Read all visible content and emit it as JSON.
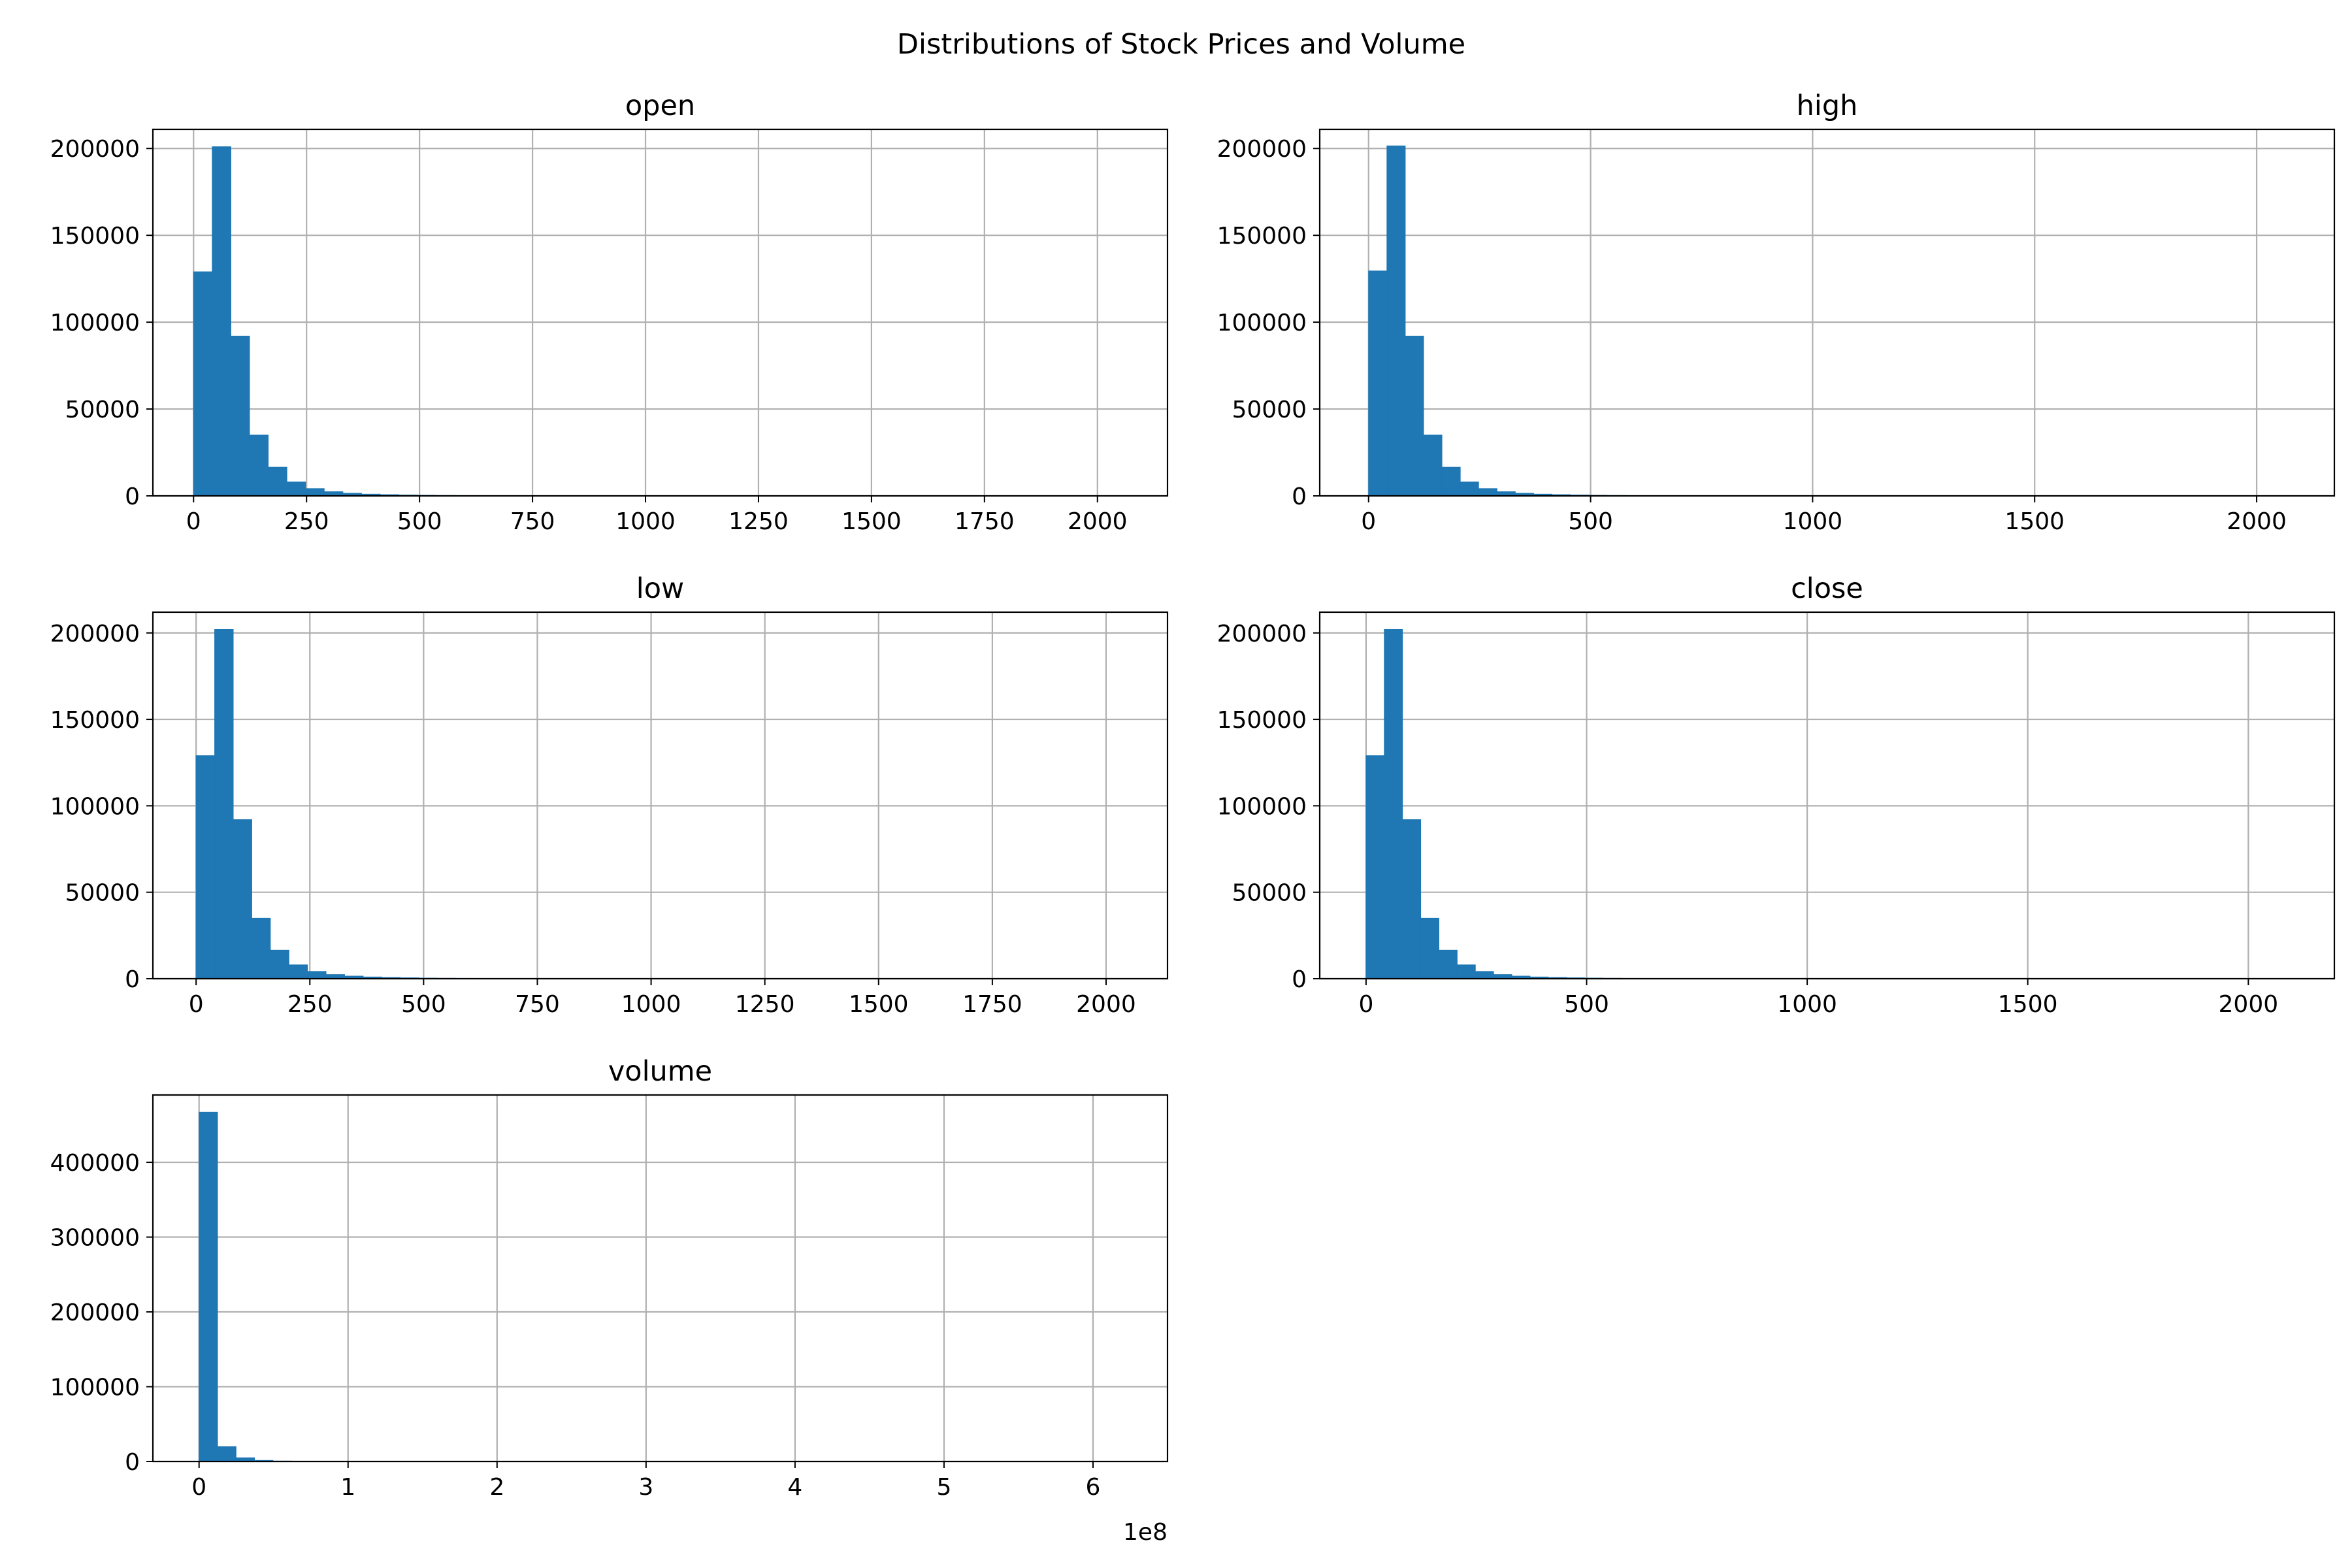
{
  "chart_data": {
    "title": "Distributions of Stock Prices and Volume",
    "type": "histogram-grid",
    "bar_color": "#1f77b4",
    "grid": true,
    "panels": [
      {
        "title": "open",
        "type": "bar",
        "bins": 50,
        "bin_width": 41.3,
        "counts": [
          129000,
          201000,
          92000,
          35000,
          16500,
          8000,
          4200,
          2400,
          1500,
          1000,
          700,
          500,
          350,
          250,
          200,
          180,
          150,
          120,
          110,
          130,
          100,
          80,
          60,
          50,
          40,
          30,
          25,
          20,
          18,
          15,
          12,
          10,
          8,
          7,
          6,
          5,
          5,
          4,
          4,
          3,
          3,
          2,
          2,
          2,
          2,
          1,
          1,
          1,
          1,
          1
        ],
        "xlim": [
          -90,
          2155
        ],
        "ylim": [
          0,
          211000
        ],
        "xticks": [
          0,
          250,
          500,
          750,
          1000,
          1250,
          1500,
          1750,
          2000
        ],
        "xtick_labels": [
          "0",
          "250",
          "500",
          "750",
          "1000",
          "1250",
          "1500",
          "1750",
          "2000"
        ],
        "yticks": [
          0,
          50000,
          100000,
          150000,
          200000
        ],
        "ytick_labels": [
          "0",
          "50000",
          "100000",
          "150000",
          "200000"
        ]
      },
      {
        "title": "high",
        "type": "bar",
        "bins": 50,
        "bin_width": 41.3,
        "counts": [
          129500,
          201500,
          92000,
          35000,
          16500,
          8000,
          4200,
          2400,
          1500,
          1000,
          700,
          500,
          350,
          250,
          200,
          180,
          150,
          120,
          110,
          130,
          100,
          80,
          60,
          50,
          40,
          30,
          25,
          20,
          18,
          15,
          12,
          10,
          8,
          7,
          6,
          5,
          5,
          4,
          4,
          3,
          3,
          2,
          2,
          2,
          2,
          1,
          1,
          1,
          1,
          1
        ],
        "xlim": [
          -110,
          2175
        ],
        "ylim": [
          0,
          211000
        ],
        "xticks": [
          0,
          500,
          1000,
          1500,
          2000
        ],
        "xtick_labels": [
          "0",
          "500",
          "1000",
          "1500",
          "2000"
        ],
        "yticks": [
          0,
          50000,
          100000,
          150000,
          200000
        ],
        "ytick_labels": [
          "0",
          "50000",
          "100000",
          "150000",
          "200000"
        ]
      },
      {
        "title": "low",
        "type": "bar",
        "bins": 50,
        "bin_width": 40.8,
        "counts": [
          129000,
          202000,
          92000,
          35000,
          16500,
          8000,
          4200,
          2400,
          1500,
          1000,
          700,
          500,
          350,
          250,
          200,
          180,
          150,
          120,
          110,
          130,
          100,
          80,
          60,
          50,
          40,
          30,
          25,
          20,
          18,
          15,
          12,
          10,
          8,
          7,
          6,
          5,
          5,
          4,
          4,
          3,
          3,
          2,
          2,
          2,
          2,
          1,
          1,
          1,
          1,
          1
        ],
        "xlim": [
          -95,
          2135
        ],
        "ylim": [
          0,
          212000
        ],
        "xticks": [
          0,
          250,
          500,
          750,
          1000,
          1250,
          1500,
          1750,
          2000
        ],
        "xtick_labels": [
          "0",
          "250",
          "500",
          "750",
          "1000",
          "1250",
          "1500",
          "1750",
          "2000"
        ],
        "yticks": [
          0,
          50000,
          100000,
          150000,
          200000
        ],
        "ytick_labels": [
          "0",
          "50000",
          "100000",
          "150000",
          "200000"
        ]
      },
      {
        "title": "close",
        "type": "bar",
        "bins": 50,
        "bin_width": 41.3,
        "counts": [
          129000,
          202000,
          92000,
          35000,
          16500,
          8000,
          4200,
          2400,
          1500,
          1000,
          700,
          500,
          350,
          250,
          200,
          180,
          150,
          120,
          110,
          130,
          100,
          80,
          60,
          50,
          40,
          30,
          25,
          20,
          18,
          15,
          12,
          10,
          8,
          7,
          6,
          5,
          5,
          4,
          4,
          3,
          3,
          2,
          2,
          2,
          2,
          1,
          1,
          1,
          1,
          1
        ],
        "xlim": [
          -105,
          2195
        ],
        "ylim": [
          0,
          212000
        ],
        "xticks": [
          0,
          500,
          1000,
          1500,
          2000
        ],
        "xtick_labels": [
          "0",
          "500",
          "1000",
          "1500",
          "2000"
        ],
        "yticks": [
          0,
          50000,
          100000,
          150000,
          200000
        ],
        "ytick_labels": [
          "0",
          "50000",
          "100000",
          "150000",
          "200000"
        ]
      },
      {
        "title": "volume",
        "type": "bar",
        "bins": 50,
        "bin_width": 0.124,
        "counts": [
          467000,
          20000,
          5000,
          1500,
          600,
          300,
          150,
          100,
          60,
          40,
          30,
          20,
          15,
          10,
          8,
          6,
          5,
          4,
          3,
          3,
          2,
          2,
          2,
          1,
          1,
          1,
          1,
          1,
          1,
          1,
          1,
          1,
          1,
          1,
          1,
          1,
          1,
          1,
          1,
          1,
          1,
          1,
          1,
          1,
          1,
          1,
          1,
          1,
          1,
          1
        ],
        "xlim": [
          -0.31,
          6.5
        ],
        "ylim": [
          0,
          490000
        ],
        "xticks": [
          0,
          1,
          2,
          3,
          4,
          5,
          6
        ],
        "xtick_labels": [
          "0",
          "1",
          "2",
          "3",
          "4",
          "5",
          "6"
        ],
        "yticks": [
          0,
          100000,
          200000,
          300000,
          400000
        ],
        "ytick_labels": [
          "0",
          "100000",
          "200000",
          "300000",
          "400000"
        ],
        "x_offset_label": "1e8"
      }
    ]
  }
}
